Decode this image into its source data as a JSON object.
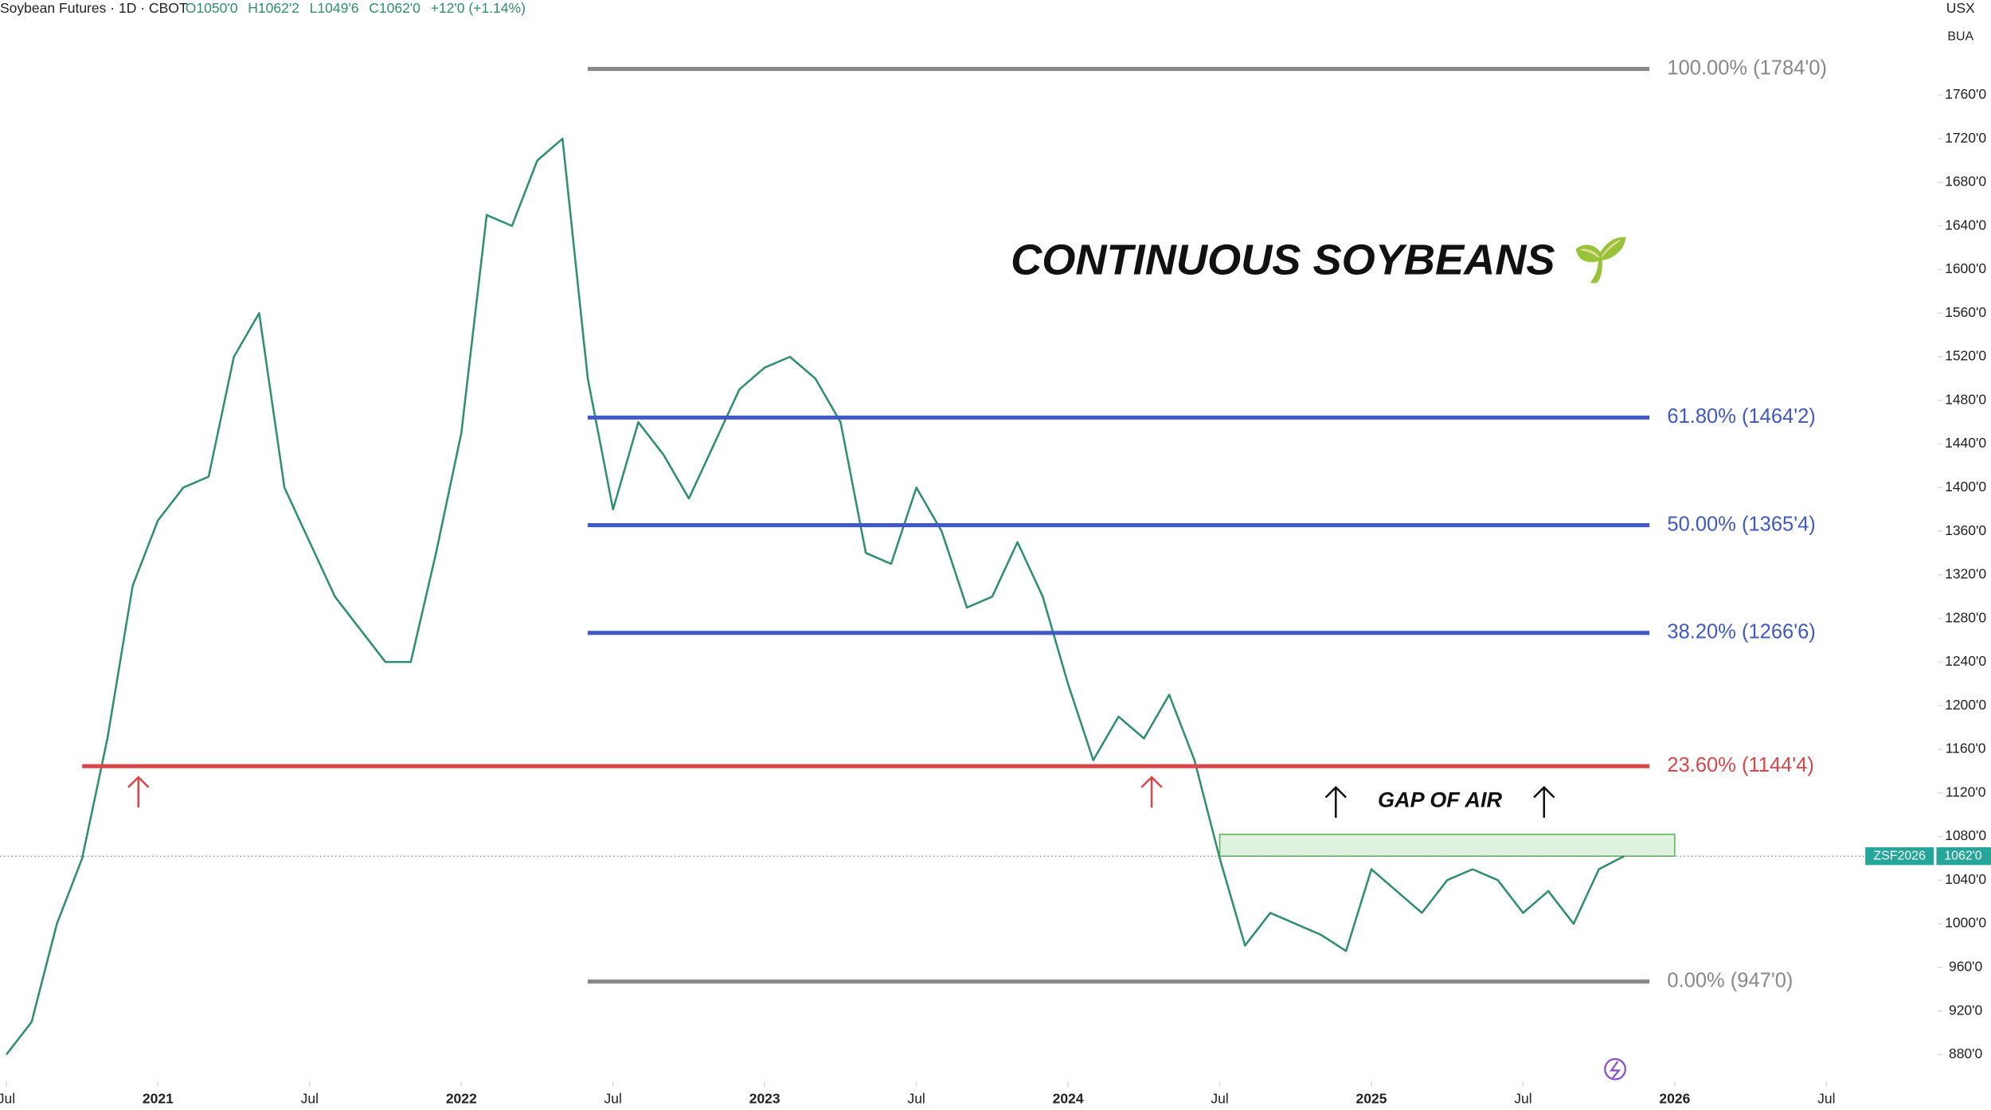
{
  "chart_data": {
    "type": "line",
    "header": "Soybean Futures · 1D · CBOT",
    "header_values": [
      "O1050'0",
      "H1062'2",
      "L1049'6",
      "C1062'0",
      "+12'0 (+1.14%)"
    ],
    "currency": "USX",
    "unit": "BUA",
    "title": "CONTINUOUS SOYBEANS 🌱",
    "annotation": "GAP OF AIR",
    "xlim": [
      "2020-07",
      "2026-11"
    ],
    "ylim": [
      855,
      1847
    ],
    "xticks": [
      {
        "value": "2020-07",
        "label": "Jul"
      },
      {
        "value": "2021-01",
        "label": "2021"
      },
      {
        "value": "2021-07",
        "label": "Jul"
      },
      {
        "value": "2022-01",
        "label": "2022"
      },
      {
        "value": "2022-07",
        "label": "Jul"
      },
      {
        "value": "2023-01",
        "label": "2023"
      },
      {
        "value": "2023-07",
        "label": "Jul"
      },
      {
        "value": "2024-01",
        "label": "2024"
      },
      {
        "value": "2024-07",
        "label": "Jul"
      },
      {
        "value": "2025-01",
        "label": "2025"
      },
      {
        "value": "2025-07",
        "label": "Jul"
      },
      {
        "value": "2026-01",
        "label": "2026"
      },
      {
        "value": "2026-07",
        "label": "Jul"
      }
    ],
    "yticks": [
      {
        "value": 880,
        "label": "880'0"
      },
      {
        "value": 920,
        "label": "920'0"
      },
      {
        "value": 960,
        "label": "960'0"
      },
      {
        "value": 1000,
        "label": "1000'0"
      },
      {
        "value": 1040,
        "label": "1040'0"
      },
      {
        "value": 1080,
        "label": "1080'0"
      },
      {
        "value": 1120,
        "label": "1120'0"
      },
      {
        "value": 1160,
        "label": "1160'0"
      },
      {
        "value": 1200,
        "label": "1200'0"
      },
      {
        "value": 1240,
        "label": "1240'0"
      },
      {
        "value": 1280,
        "label": "1280'0"
      },
      {
        "value": 1320,
        "label": "1320'0"
      },
      {
        "value": 1360,
        "label": "1360'0"
      },
      {
        "value": 1400,
        "label": "1400'0"
      },
      {
        "value": 1440,
        "label": "1440'0"
      },
      {
        "value": 1480,
        "label": "1480'0"
      },
      {
        "value": 1520,
        "label": "1520'0"
      },
      {
        "value": 1560,
        "label": "1560'0"
      },
      {
        "value": 1600,
        "label": "1600'0"
      },
      {
        "value": 1640,
        "label": "1640'0"
      },
      {
        "value": 1680,
        "label": "1680'0"
      },
      {
        "value": 1720,
        "label": "1720'0"
      },
      {
        "value": 1760,
        "label": "1760'0"
      }
    ],
    "x": [
      "2020-07",
      "2020-08",
      "2020-09",
      "2020-10",
      "2020-11",
      "2020-12",
      "2021-01",
      "2021-02",
      "2021-03",
      "2021-04",
      "2021-05",
      "2021-06",
      "2021-07",
      "2021-08",
      "2021-09",
      "2021-10",
      "2021-11",
      "2021-12",
      "2022-01",
      "2022-02",
      "2022-03",
      "2022-04",
      "2022-05",
      "2022-06",
      "2022-07",
      "2022-08",
      "2022-09",
      "2022-10",
      "2022-11",
      "2022-12",
      "2023-01",
      "2023-02",
      "2023-03",
      "2023-04",
      "2023-05",
      "2023-06",
      "2023-07",
      "2023-08",
      "2023-09",
      "2023-10",
      "2023-11",
      "2023-12",
      "2024-01",
      "2024-02",
      "2024-03",
      "2024-04",
      "2024-05",
      "2024-06",
      "2024-07",
      "2024-08",
      "2024-09",
      "2024-10",
      "2024-11",
      "2024-12",
      "2025-01",
      "2025-02",
      "2025-03",
      "2025-04",
      "2025-05",
      "2025-06",
      "2025-07",
      "2025-08",
      "2025-09",
      "2025-10",
      "2025-11"
    ],
    "series": [
      {
        "name": "ZSF2026",
        "color": "#2f8f6f",
        "values": [
          880,
          910,
          1000,
          1060,
          1170,
          1310,
          1370,
          1400,
          1410,
          1520,
          1560,
          1400,
          1350,
          1300,
          1270,
          1240,
          1240,
          1340,
          1450,
          1650,
          1640,
          1700,
          1720,
          1500,
          1380,
          1460,
          1430,
          1390,
          1440,
          1490,
          1510,
          1520,
          1500,
          1460,
          1340,
          1330,
          1400,
          1360,
          1290,
          1300,
          1350,
          1300,
          1220,
          1150,
          1190,
          1170,
          1210,
          1150,
          1060,
          980,
          1010,
          1000,
          990,
          975,
          1050,
          1030,
          1010,
          1040,
          1050,
          1040,
          1010,
          1030,
          1000,
          1050,
          1062
        ]
      }
    ],
    "last_price": {
      "value": 1062,
      "label": "1062'0"
    },
    "fib_levels": [
      {
        "price": 1784,
        "label": "100.00% (1784'0)",
        "color": "#888888",
        "start": "2022-06",
        "end": "2025-12"
      },
      {
        "price": 1464.25,
        "label": "61.80% (1464'2)",
        "color": "#4059c4",
        "start": "2022-06",
        "end": "2025-12"
      },
      {
        "price": 1365.5,
        "label": "50.00% (1365'4)",
        "color": "#4059c4",
        "start": "2022-06",
        "end": "2025-12"
      },
      {
        "price": 1266.75,
        "label": "38.20% (1266'6)",
        "color": "#4059c4",
        "start": "2022-06",
        "end": "2025-12"
      },
      {
        "price": 1144.5,
        "label": "23.60% (1144'4)",
        "color": "#d9474b",
        "start": "2020-10",
        "end": "2025-12"
      },
      {
        "price": 947,
        "label": "0.00% (947'0)",
        "color": "#888888",
        "start": "2022-06",
        "end": "2025-12"
      }
    ],
    "gap_zone": {
      "low": 1062,
      "high": 1082,
      "start": "2024-07",
      "end": "2026-01"
    }
  }
}
